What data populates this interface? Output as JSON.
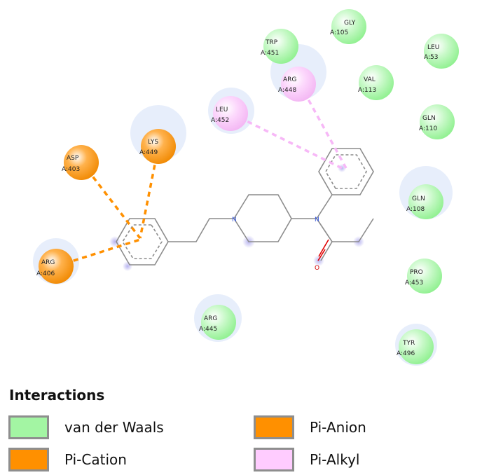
{
  "diagram": {
    "residues": [
      {
        "key": "GLY105",
        "name": "GLY",
        "id": "A:105",
        "type": "vdw"
      },
      {
        "key": "TRP451",
        "name": "TRP",
        "id": "A:451",
        "type": "vdw"
      },
      {
        "key": "LEU53",
        "name": "LEU",
        "id": "A:53",
        "type": "vdw"
      },
      {
        "key": "ARG448",
        "name": "ARG",
        "id": "A:448",
        "type": "pi-alkyl"
      },
      {
        "key": "VAL113",
        "name": "VAL",
        "id": "A:113",
        "type": "vdw"
      },
      {
        "key": "LEU452",
        "name": "LEU",
        "id": "A:452",
        "type": "pi-alkyl"
      },
      {
        "key": "GLN110",
        "name": "GLN",
        "id": "A:110",
        "type": "vdw"
      },
      {
        "key": "LYS449",
        "name": "LYS",
        "id": "A:449",
        "type": "pi-cation"
      },
      {
        "key": "ASP403",
        "name": "ASP",
        "id": "A:403",
        "type": "pi-anion"
      },
      {
        "key": "GLN108",
        "name": "GLN",
        "id": "A:108",
        "type": "vdw"
      },
      {
        "key": "ARG406",
        "name": "ARG",
        "id": "A:406",
        "type": "pi-cation"
      },
      {
        "key": "PRO453",
        "name": "PRO",
        "id": "A:453",
        "type": "vdw"
      },
      {
        "key": "ARG445",
        "name": "ARG",
        "id": "A:445",
        "type": "vdw"
      },
      {
        "key": "TYR496",
        "name": "TYR",
        "id": "A:496",
        "type": "vdw"
      }
    ],
    "atom_labels": {
      "nitrogen1": "N",
      "nitrogen2": "N",
      "oxygen": "O"
    }
  },
  "legend": {
    "title": "Interactions",
    "items": [
      {
        "label": "van der Waals",
        "color": "#a3f5a3"
      },
      {
        "label": "Pi-Anion",
        "color": "#ff9000"
      },
      {
        "label": "Pi-Cation",
        "color": "#ff9000"
      },
      {
        "label": "Pi-Alkyl",
        "color": "#ffccff"
      }
    ]
  },
  "colors": {
    "vdw": "#a3f5a3",
    "pi_anion": "#ff9000",
    "pi_cation": "#ff9000",
    "pi_alkyl": "#ffccff",
    "bond": "#8c8c8c",
    "oxygen": "#e00000",
    "nitrogen": "#3b5bdb"
  }
}
